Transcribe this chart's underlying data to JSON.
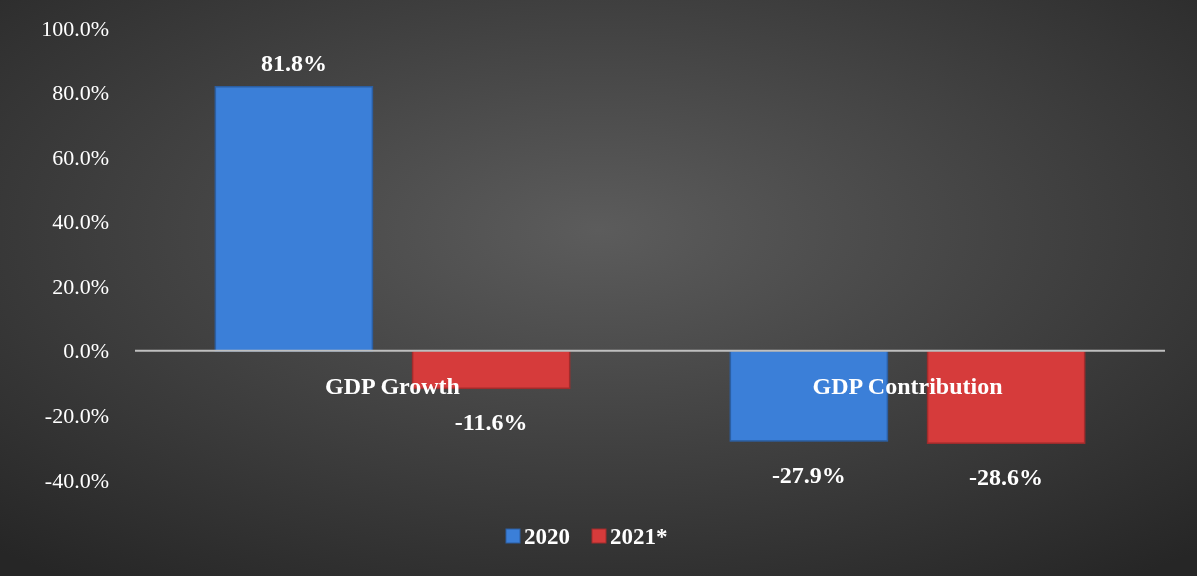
{
  "chart_data": {
    "type": "bar",
    "categories": [
      "GDP Growth",
      "GDP Contribution"
    ],
    "series": [
      {
        "name": "2020",
        "color": "#3b7fd8",
        "values": [
          81.8,
          -27.9
        ]
      },
      {
        "name": "2021*",
        "color": "#d63b3b",
        "values": [
          -11.6,
          -28.6
        ]
      }
    ],
    "ylim": [
      -40,
      100
    ],
    "yticks": [
      {
        "value": -40,
        "label": "-40.0%"
      },
      {
        "value": -20,
        "label": "-20.0%"
      },
      {
        "value": 0,
        "label": "0.0%"
      },
      {
        "value": 20,
        "label": "20.0%"
      },
      {
        "value": 40,
        "label": "40.0%"
      },
      {
        "value": 60,
        "label": "60.0%"
      },
      {
        "value": 80,
        "label": "80.0%"
      },
      {
        "value": 100,
        "label": "100.0%"
      }
    ],
    "value_labels": [
      [
        "81.8%",
        "-27.9%"
      ],
      [
        "-11.6%",
        "-28.6%"
      ]
    ],
    "grid": false,
    "legend": "bottom"
  }
}
